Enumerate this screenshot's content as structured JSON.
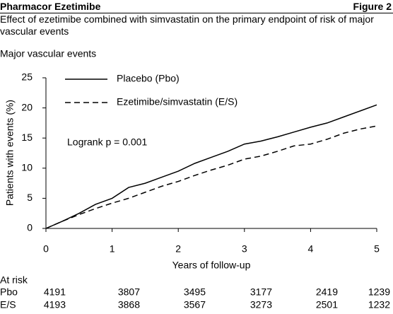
{
  "header": {
    "title": "Pharmacor Ezetimibe",
    "figure": "Figure 2"
  },
  "chart_data": {
    "type": "line",
    "title": "Effect of ezetimibe combined with simvastatin on the primary endpoint of risk of major vascular events",
    "subtitle": "Major vascular events",
    "xlabel": "Years of follow-up",
    "ylabel": "Patients with events (%)",
    "annotation": "Logrank p = 0.001",
    "x": [
      0,
      0.25,
      0.5,
      0.75,
      1,
      1.25,
      1.5,
      1.75,
      2,
      2.25,
      2.5,
      2.75,
      3,
      3.25,
      3.5,
      3.75,
      4,
      4.25,
      4.5,
      4.75,
      5
    ],
    "series": [
      {
        "name": "Placebo (Pbo)",
        "color": "#000000",
        "style": "solid",
        "values": [
          0,
          1.2,
          2.5,
          4,
          5,
          6.8,
          7.5,
          8.5,
          9.5,
          10.8,
          11.8,
          12.8,
          14,
          14.5,
          15.2,
          16,
          16.8,
          17.5,
          18.5,
          19.5,
          20.5
        ]
      },
      {
        "name": "Ezetimibe/simvastatin (E/S)",
        "color": "#000000",
        "style": "dashed",
        "values": [
          0,
          1.2,
          2.3,
          3.3,
          4.2,
          5,
          6,
          7,
          7.8,
          8.8,
          9.7,
          10.5,
          11.5,
          12,
          12.8,
          13.7,
          14,
          14.8,
          15.8,
          16.5,
          17
        ]
      }
    ],
    "xlim": [
      0,
      5
    ],
    "xticks": [
      0,
      1,
      2,
      3,
      4,
      5
    ],
    "ylim": [
      0,
      25
    ],
    "yticks": [
      0,
      5,
      10,
      15,
      20,
      25
    ],
    "legend": "top-left"
  },
  "at_risk": {
    "label": "At risk",
    "rows": [
      {
        "name": "Pbo",
        "values": [
          4191,
          3807,
          3495,
          3177,
          2419,
          1239
        ]
      },
      {
        "name": "E/S",
        "values": [
          4193,
          3868,
          3567,
          3273,
          2501,
          1232
        ]
      }
    ]
  }
}
